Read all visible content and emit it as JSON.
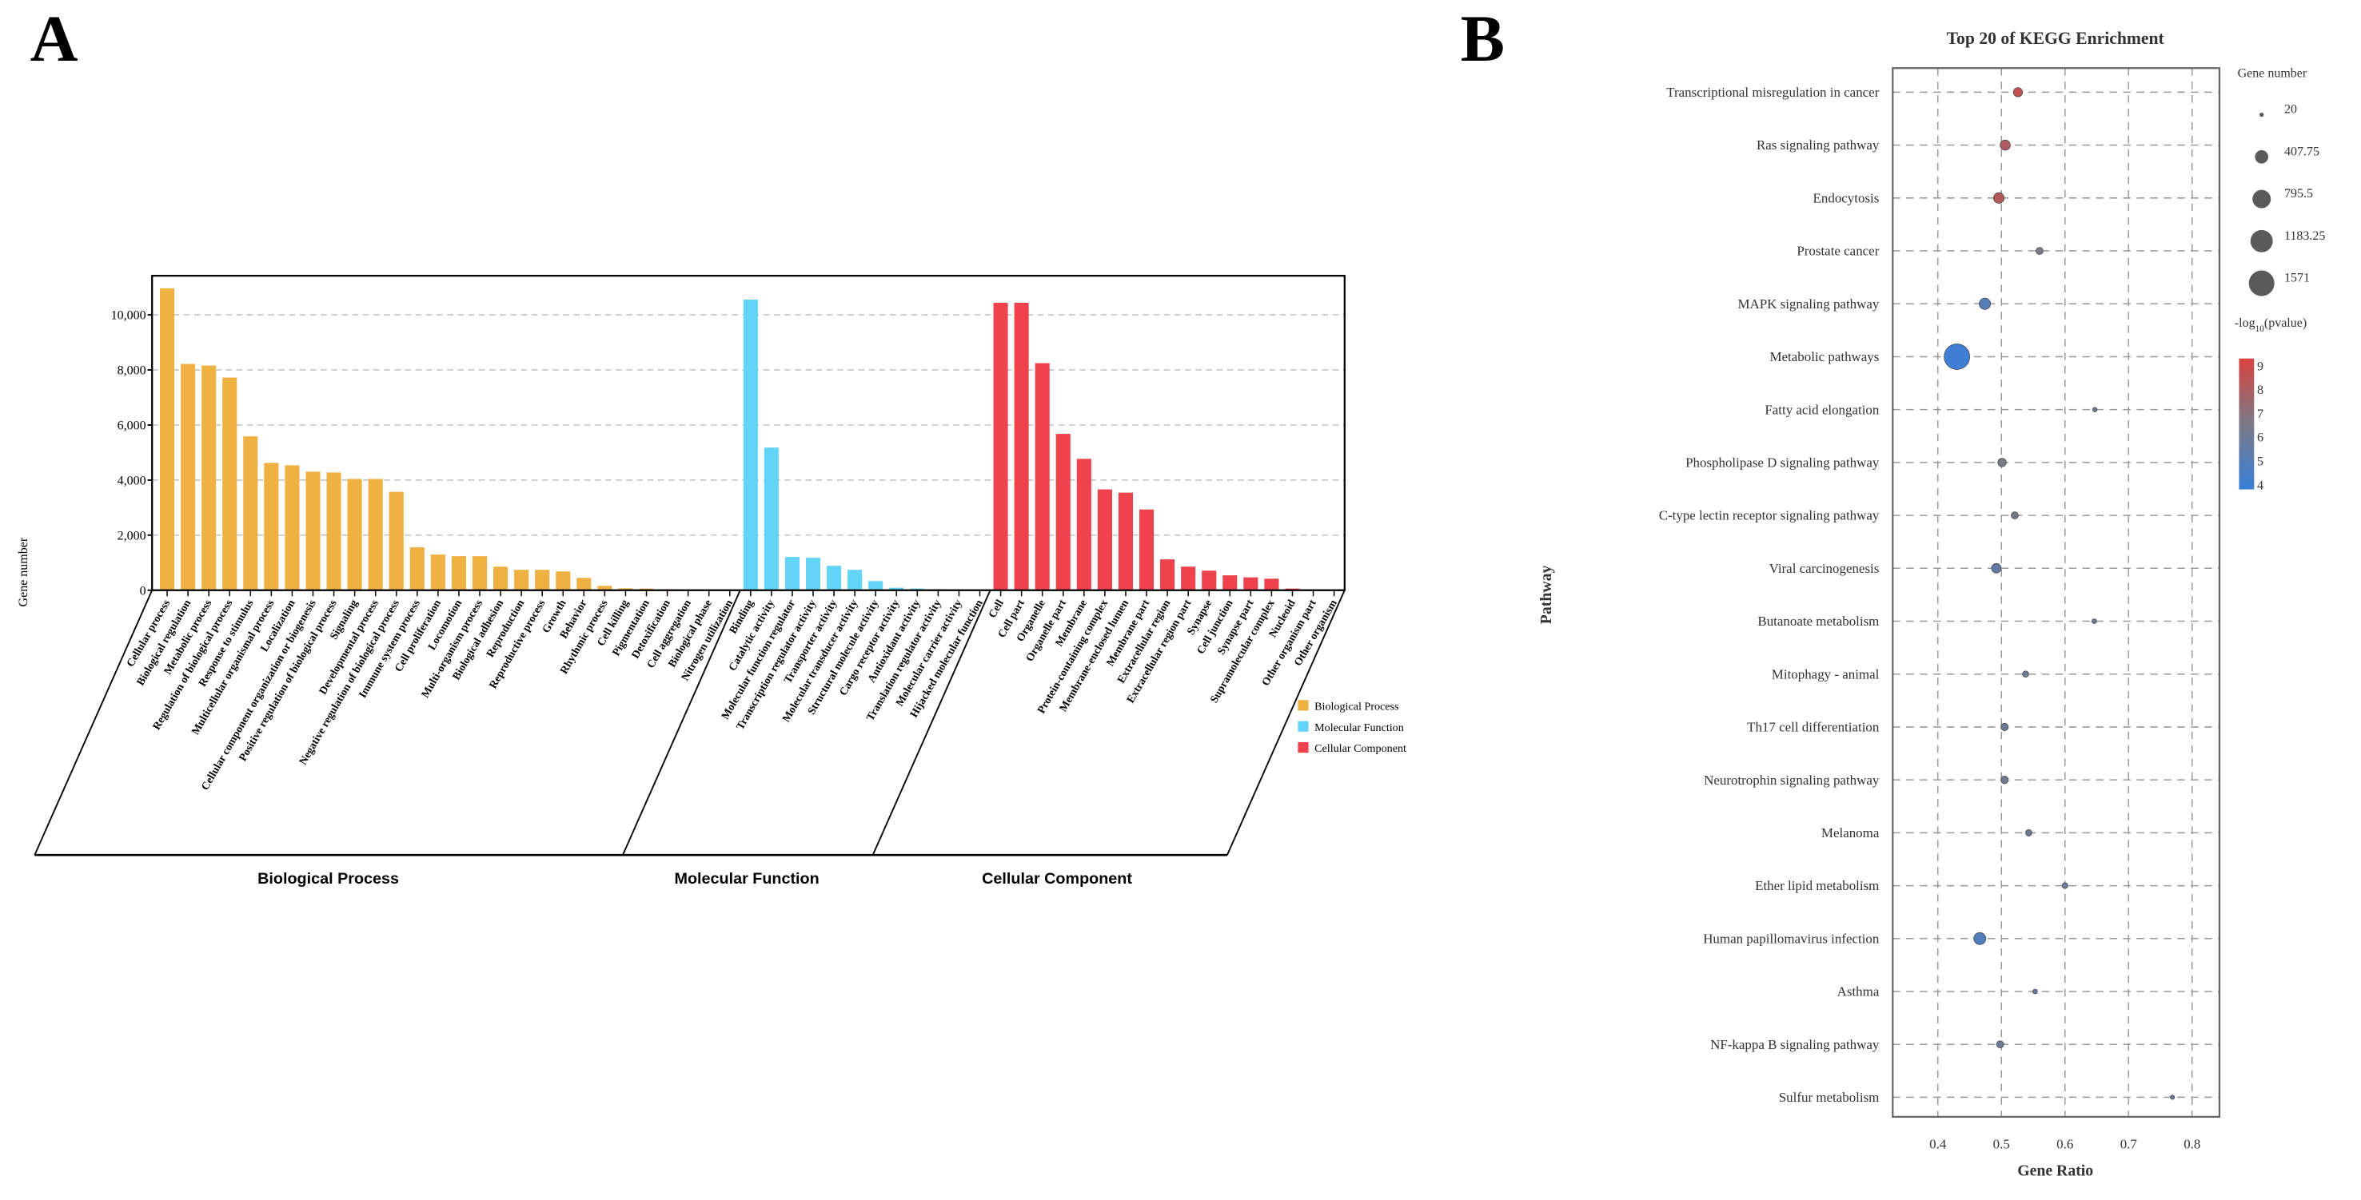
{
  "panels": {
    "a_label": "A",
    "b_label": "B"
  },
  "chart_data": [
    {
      "type": "bar",
      "title": "",
      "xlabel": "",
      "ylabel": "Gene number",
      "ylim": [
        0,
        11420
      ],
      "yticks": [
        0,
        2000,
        4000,
        6000,
        8000,
        10000
      ],
      "ytick_labels": [
        "0",
        "2,000",
        "4,000",
        "6,000",
        "8,000",
        "10,000"
      ],
      "grid": "horizontal dashed",
      "legend": "right",
      "groups": [
        {
          "name": "Biological Process",
          "color": "#f0b143",
          "categories": [
            "Cellular process",
            "Biological regulation",
            "Metabolic process",
            "Regulation of biological process",
            "Response to stimulus",
            "Multicellular organismal process",
            "Localization",
            "Cellular component organization or biogenesis",
            "Positive regulation of biological process",
            "Signaling",
            "Developmental process",
            "Negative regulation of biological process",
            "Immune system process",
            "Cell proliferation",
            "Locomotion",
            "Multi-organism process",
            "Biological adhesion",
            "Reproduction",
            "Reproductive process",
            "Growth",
            "Behavior",
            "Rhythmic process",
            "Cell killing",
            "Pigmentation",
            "Detoxification",
            "Cell aggregation",
            "Biological phase",
            "Nitrogen utilization"
          ],
          "values": [
            10964,
            8218,
            8160,
            7721,
            5589,
            4625,
            4537,
            4304,
            4275,
            4041,
            4041,
            3573,
            1558,
            1295,
            1237,
            1237,
            857,
            740,
            740,
            682,
            448,
            160,
            70,
            60,
            40,
            5,
            3,
            2
          ]
        },
        {
          "name": "Molecular Function",
          "color": "#62d4f5",
          "categories": [
            "Binding",
            "Catalytic activity",
            "Molecular function regulator",
            "Transcription regulator activity",
            "Transporter activity",
            "Molecular transducer activity",
            "Structural molecule activity",
            "Cargo receptor activity",
            "Antioxidant activity",
            "Translation regulator activity",
            "Molecular carrier activity",
            "Hijacked molecular function"
          ],
          "values": [
            10555,
            5180,
            1207,
            1178,
            886,
            740,
            331,
            90,
            60,
            40,
            30,
            2
          ]
        },
        {
          "name": "Cellular Component",
          "color": "#f0424c",
          "categories": [
            "Cell",
            "Cell part",
            "Organelle",
            "Organelle part",
            "Membrane",
            "Protein-containing complex",
            "Membrane-enclosed lumen",
            "Membrane part",
            "Extracellular region",
            "Extracellular region part",
            "Synapse",
            "Cell junction",
            "Synapse part",
            "Supramolecular complex",
            "Nucleoid",
            "Other organism part",
            "Other organism"
          ],
          "values": [
            10438,
            10438,
            8247,
            5677,
            4771,
            3661,
            3544,
            2931,
            1120,
            857,
            711,
            540,
            467,
            419,
            60,
            30,
            30
          ]
        }
      ]
    },
    {
      "type": "scatter",
      "title": "Top 20 of KEGG Enrichment",
      "xlabel": "Gene Ratio",
      "ylabel": "Pathway",
      "xlim": [
        0.329,
        0.843
      ],
      "xticks": [
        0.4,
        0.5,
        0.6,
        0.7,
        0.8
      ],
      "xtick_labels": [
        "0.4",
        "0.5",
        "0.6",
        "0.7",
        "0.8"
      ],
      "grid": "dashed both",
      "legend": "right",
      "size_legend": {
        "title": "Gene number",
        "values": [
          20,
          407.75,
          795.5,
          1183.25,
          1571
        ],
        "labels": [
          "20",
          "407.75",
          "795.5",
          "1183.25",
          "1571"
        ]
      },
      "color_legend": {
        "title_prefix": "-log",
        "title_sub": "10",
        "title_suffix": "(pvalue)",
        "min": 3.8,
        "max": 9.3,
        "ticks": [
          9,
          8,
          7,
          6,
          5,
          4
        ],
        "tick_labels": [
          "9",
          "8",
          "7",
          "6",
          "5",
          "4"
        ],
        "low_color": "#3a7fd9",
        "mid_color": "#7a7a86",
        "high_color": "#d8433f"
      },
      "points": [
        {
          "pathway": "Transcriptional misregulation in cancer",
          "gene_ratio": 0.526,
          "gene_number": 180,
          "neg_log10_p": 8.6
        },
        {
          "pathway": "Ras signaling pathway",
          "gene_ratio": 0.506,
          "gene_number": 230,
          "neg_log10_p": 8.0
        },
        {
          "pathway": "Endocytosis",
          "gene_ratio": 0.496,
          "gene_number": 250,
          "neg_log10_p": 8.2
        },
        {
          "pathway": "Prostate cancer",
          "gene_ratio": 0.56,
          "gene_number": 100,
          "neg_log10_p": 6.6
        },
        {
          "pathway": "MAPK signaling pathway",
          "gene_ratio": 0.474,
          "gene_number": 290,
          "neg_log10_p": 5.0
        },
        {
          "pathway": "Metabolic pathways",
          "gene_ratio": 0.43,
          "gene_number": 1571,
          "neg_log10_p": 4.0
        },
        {
          "pathway": "Fatty acid elongation",
          "gene_ratio": 0.647,
          "gene_number": 25,
          "neg_log10_p": 6.2
        },
        {
          "pathway": "Phospholipase D signaling pathway",
          "gene_ratio": 0.501,
          "gene_number": 150,
          "neg_log10_p": 6.5
        },
        {
          "pathway": "C-type lectin receptor signaling pathway",
          "gene_ratio": 0.521,
          "gene_number": 100,
          "neg_log10_p": 6.3
        },
        {
          "pathway": "Viral carcinogenesis",
          "gene_ratio": 0.492,
          "gene_number": 200,
          "neg_log10_p": 5.6
        },
        {
          "pathway": "Butanoate metabolism",
          "gene_ratio": 0.646,
          "gene_number": 30,
          "neg_log10_p": 6.0
        },
        {
          "pathway": "Mitophagy - animal",
          "gene_ratio": 0.538,
          "gene_number": 70,
          "neg_log10_p": 6.0
        },
        {
          "pathway": "Th17 cell differentiation",
          "gene_ratio": 0.505,
          "gene_number": 110,
          "neg_log10_p": 6.0
        },
        {
          "pathway": "Neurotrophin signaling pathway",
          "gene_ratio": 0.505,
          "gene_number": 120,
          "neg_log10_p": 6.0
        },
        {
          "pathway": "Melanoma",
          "gene_ratio": 0.543,
          "gene_number": 75,
          "neg_log10_p": 6.0
        },
        {
          "pathway": "Ether lipid metabolism",
          "gene_ratio": 0.6,
          "gene_number": 60,
          "neg_log10_p": 6.0
        },
        {
          "pathway": "Human papillomavirus infection",
          "gene_ratio": 0.466,
          "gene_number": 330,
          "neg_log10_p": 4.8
        },
        {
          "pathway": "Asthma",
          "gene_ratio": 0.553,
          "gene_number": 30,
          "neg_log10_p": 6.0
        },
        {
          "pathway": "NF-kappa B signaling pathway",
          "gene_ratio": 0.498,
          "gene_number": 100,
          "neg_log10_p": 6.0
        },
        {
          "pathway": "Sulfur metabolism",
          "gene_ratio": 0.769,
          "gene_number": 20,
          "neg_log10_p": 6.0
        }
      ]
    }
  ]
}
